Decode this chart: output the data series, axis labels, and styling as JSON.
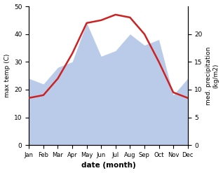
{
  "months": [
    "Jan",
    "Feb",
    "Mar",
    "Apr",
    "May",
    "Jun",
    "Jul",
    "Aug",
    "Sep",
    "Oct",
    "Nov",
    "Dec"
  ],
  "x": [
    1,
    2,
    3,
    4,
    5,
    6,
    7,
    8,
    9,
    10,
    11,
    12
  ],
  "temp_max": [
    17,
    18,
    24,
    33,
    44,
    45,
    47,
    46,
    40,
    30,
    19,
    17
  ],
  "precip": [
    12,
    11,
    14,
    15,
    22,
    16,
    17,
    20,
    18,
    19,
    9,
    12
  ],
  "temp_ylim": [
    0,
    50
  ],
  "precip_ylim": [
    0,
    25
  ],
  "temp_yticks": [
    0,
    10,
    20,
    30,
    40,
    50
  ],
  "precip_yticks": [
    0,
    5,
    10,
    15,
    20
  ],
  "temp_color": "#cc2222",
  "precip_fill_color": "#b3c6e8",
  "precip_fill_alpha": 0.9,
  "xlabel": "date (month)",
  "ylabel_left": "max temp (C)",
  "ylabel_right": "med. precipitation\n(kg/m2)",
  "fig_width": 3.18,
  "fig_height": 2.47,
  "dpi": 100
}
